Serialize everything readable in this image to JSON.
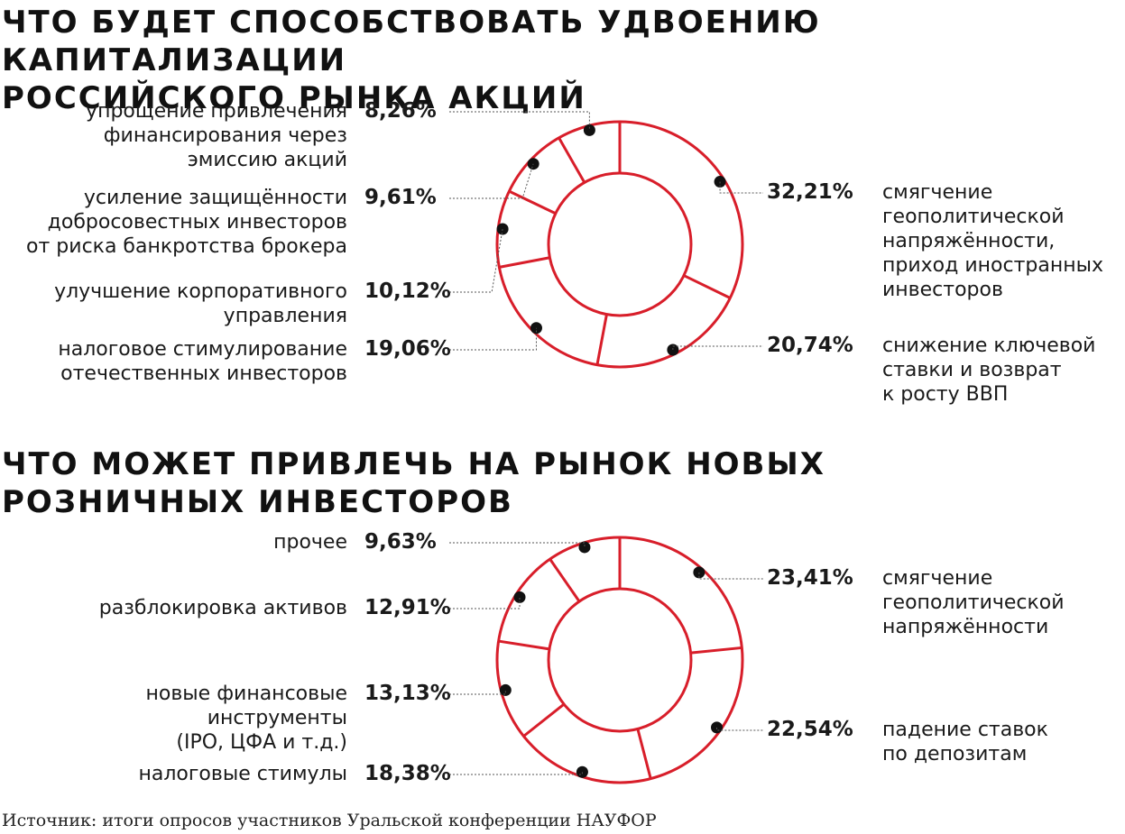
{
  "source": "Источник: итоги опросов участников Уральской конференции НАУФОР",
  "colors": {
    "ring": "#d81e2a",
    "dot": "#111111",
    "leader": "#555555"
  },
  "chart_data": [
    {
      "type": "pie",
      "variant": "donut",
      "title_lines": [
        "Что будет способствовать удвоению капитализации",
        "российского рынка акций"
      ],
      "slices": [
        {
          "value": 32.21,
          "value_label": "32,21%",
          "label_lines": [
            "смягчение",
            "геополитической",
            "напряжённости,",
            "приход иностранных",
            "инвесторов"
          ]
        },
        {
          "value": 20.74,
          "value_label": "20,74%",
          "label_lines": [
            "снижение ключевой",
            "ставки и возврат",
            "к росту ВВП"
          ]
        },
        {
          "value": 19.06,
          "value_label": "19,06%",
          "label_lines": [
            "налоговое стимулирование",
            "отечественных инвесторов"
          ]
        },
        {
          "value": 10.12,
          "value_label": "10,12%",
          "label_lines": [
            "улучшение корпоративного",
            "управления"
          ]
        },
        {
          "value": 9.61,
          "value_label": "9,61%",
          "label_lines": [
            "усиление защищённости",
            "добросовестных инвесторов",
            "от риска банкротства брокера"
          ]
        },
        {
          "value": 8.26,
          "value_label": "8,26%",
          "label_lines": [
            "упрощение привлечения",
            "финансирования через",
            "эмиссию акций"
          ]
        }
      ]
    },
    {
      "type": "pie",
      "variant": "donut",
      "title_lines": [
        "Что может привлечь на рынок новых",
        "розничных инвесторов"
      ],
      "slices": [
        {
          "value": 23.41,
          "value_label": "23,41%",
          "label_lines": [
            "смягчение",
            "геополитической",
            "напряжённости"
          ]
        },
        {
          "value": 22.54,
          "value_label": "22,54%",
          "label_lines": [
            "падение ставок",
            "по депозитам"
          ]
        },
        {
          "value": 18.38,
          "value_label": "18,38%",
          "label_lines": [
            "налоговые стимулы"
          ]
        },
        {
          "value": 13.13,
          "value_label": "13,13%",
          "label_lines": [
            "новые финансовые",
            "инструменты",
            "(IPO, ЦФА и т.д.)"
          ]
        },
        {
          "value": 12.91,
          "value_label": "12,91%",
          "label_lines": [
            "разблокировка активов"
          ]
        },
        {
          "value": 9.63,
          "value_label": "9,63%",
          "label_lines": [
            "прочее"
          ]
        }
      ]
    }
  ]
}
